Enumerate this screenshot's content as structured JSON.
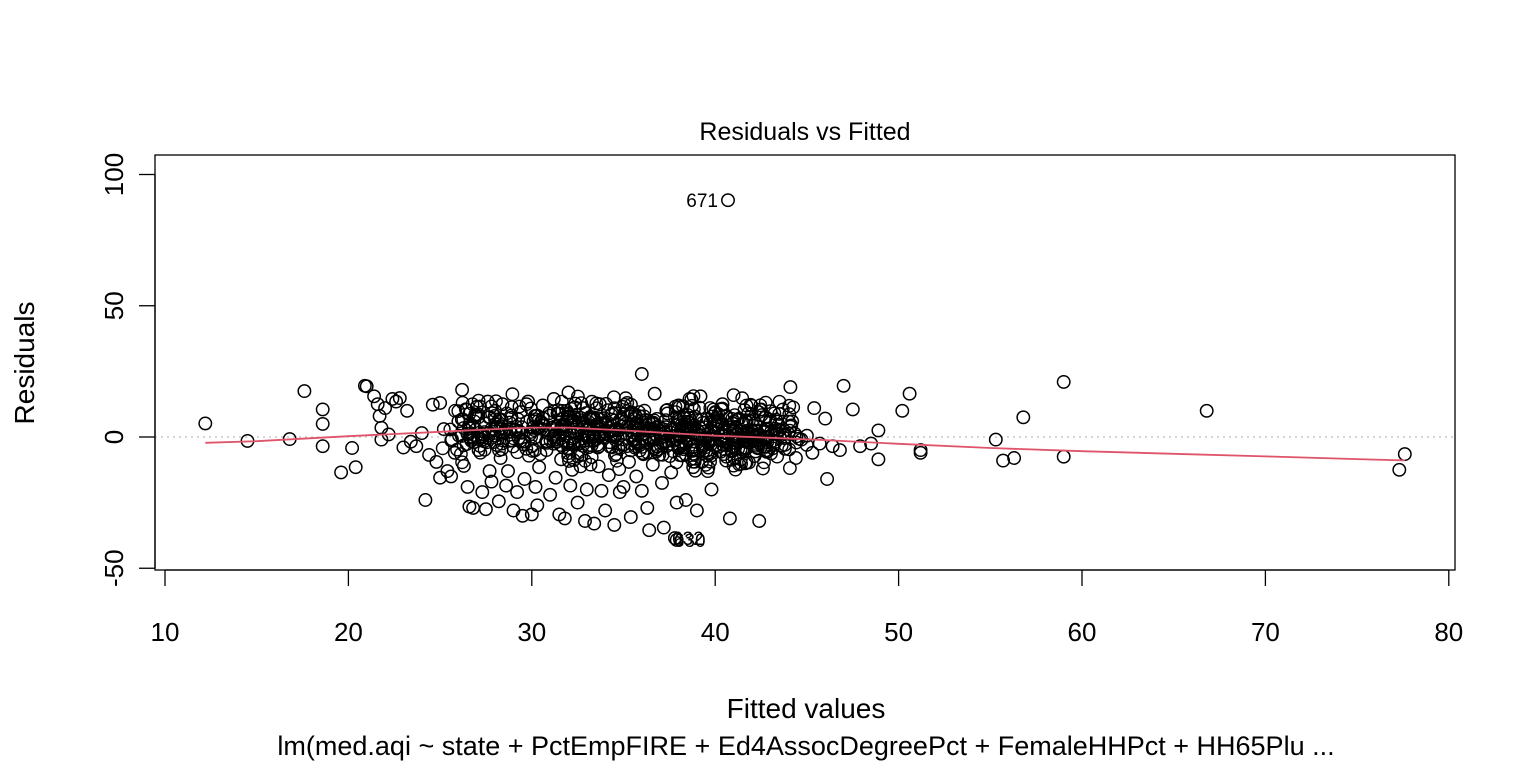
{
  "chart_data": {
    "type": "scatter",
    "title": "Residuals vs Fitted",
    "xlabel": "Fitted values",
    "ylabel": "Residuals",
    "subtitle": "lm(med.aqi ~ state + PctEmpFIRE + Ed4AssocDegreePct + FemaleHHPct + HH65Plu ...",
    "xlim": [
      10,
      80
    ],
    "ylim": [
      -50,
      100
    ],
    "x_ticks": [
      10,
      20,
      30,
      40,
      50,
      60,
      70,
      80
    ],
    "y_ticks": [
      -50,
      0,
      50,
      100
    ],
    "reference_line": {
      "y": 0,
      "style": "dotted",
      "color": "#bebebe"
    },
    "smoother": {
      "name": "lowess",
      "color": "#df536b",
      "x": [
        12.2,
        15,
        20,
        25,
        28,
        30,
        32,
        35,
        38,
        40,
        43,
        46,
        50,
        55,
        60,
        65,
        70,
        75,
        77.6
      ],
      "y": [
        -2.2,
        -1.6,
        0.3,
        2.0,
        3.0,
        3.6,
        3.6,
        2.5,
        1.3,
        0.5,
        -0.3,
        -1.2,
        -2.6,
        -4.2,
        -5.4,
        -6.4,
        -7.4,
        -8.4,
        -8.9
      ]
    },
    "outliers": [
      {
        "label": "671",
        "x": 40.7,
        "y": 90.2
      },
      {
        "label": "632",
        "x": 37.8,
        "y": -38.5
      },
      {
        "label": "630",
        "x": 37.9,
        "y": -39.2
      }
    ],
    "points": [
      [
        12.2,
        5.2
      ],
      [
        14.5,
        -1.5
      ],
      [
        16.8,
        -0.8
      ],
      [
        17.6,
        17.5
      ],
      [
        18.6,
        10.5
      ],
      [
        18.6,
        5.0
      ],
      [
        18.6,
        -3.5
      ],
      [
        19.6,
        -13.5
      ],
      [
        20.2,
        -4.2
      ],
      [
        20.4,
        -11.5
      ],
      [
        20.9,
        19.5
      ],
      [
        21.0,
        19.3
      ],
      [
        21.4,
        15.5
      ],
      [
        21.6,
        12.5
      ],
      [
        21.7,
        8.0
      ],
      [
        21.8,
        3.5
      ],
      [
        21.8,
        -1.0
      ],
      [
        22.0,
        11.0
      ],
      [
        22.2,
        1.0
      ],
      [
        22.4,
        14.5
      ],
      [
        22.6,
        13.5
      ],
      [
        22.8,
        14.8
      ],
      [
        23.0,
        -4.0
      ],
      [
        23.2,
        10.0
      ],
      [
        23.4,
        -1.8
      ],
      [
        23.7,
        -3.5
      ],
      [
        24.0,
        1.5
      ],
      [
        24.2,
        -24.0
      ],
      [
        24.4,
        -6.8
      ],
      [
        24.6,
        12.3
      ],
      [
        24.8,
        -9.5
      ],
      [
        25.0,
        13.0
      ],
      [
        25.0,
        -15.5
      ],
      [
        25.2,
        3.0
      ],
      [
        25.4,
        -13.0
      ],
      [
        25.6,
        -15.0
      ],
      [
        25.8,
        -6.0
      ],
      [
        26.0,
        6.0
      ],
      [
        26.2,
        18.0
      ],
      [
        26.3,
        -11.0
      ],
      [
        26.5,
        -19.0
      ],
      [
        26.6,
        -26.5
      ],
      [
        26.8,
        -27.0
      ],
      [
        27.0,
        11.5
      ],
      [
        27.1,
        -5.0
      ],
      [
        27.3,
        -21.0
      ],
      [
        27.5,
        -27.5
      ],
      [
        27.6,
        13.5
      ],
      [
        27.7,
        -13.0
      ],
      [
        27.8,
        -17.0
      ],
      [
        28.0,
        10.0
      ],
      [
        28.0,
        0.5
      ],
      [
        28.2,
        -24.5
      ],
      [
        28.3,
        -8.0
      ],
      [
        28.4,
        12.5
      ],
      [
        28.6,
        -18.5
      ],
      [
        28.7,
        -13.0
      ],
      [
        28.8,
        2.0
      ],
      [
        29.0,
        -28.0
      ],
      [
        29.2,
        -21.0
      ],
      [
        29.4,
        9.5
      ],
      [
        29.5,
        -30.0
      ],
      [
        29.6,
        -16.0
      ],
      [
        29.7,
        -4.5
      ],
      [
        29.8,
        13.5
      ],
      [
        30.0,
        -29.5
      ],
      [
        30.1,
        6.0
      ],
      [
        30.2,
        -19.0
      ],
      [
        30.3,
        -26.0
      ],
      [
        30.4,
        -11.5
      ],
      [
        30.6,
        12.0
      ],
      [
        30.8,
        -5.0
      ],
      [
        30.9,
        1.5
      ],
      [
        31.0,
        -22.0
      ],
      [
        31.2,
        14.5
      ],
      [
        31.3,
        -15.5
      ],
      [
        31.4,
        9.0
      ],
      [
        31.5,
        -29.5
      ],
      [
        31.6,
        -8.5
      ],
      [
        31.7,
        2.0
      ],
      [
        31.8,
        -31.0
      ],
      [
        32.0,
        17.0
      ],
      [
        32.1,
        -18.5
      ],
      [
        32.2,
        -12.5
      ],
      [
        32.4,
        5.5
      ],
      [
        32.5,
        -25.0
      ],
      [
        32.6,
        -2.5
      ],
      [
        32.8,
        11.0
      ],
      [
        32.9,
        -32.0
      ],
      [
        33.0,
        -20.0
      ],
      [
        33.2,
        -10.5
      ],
      [
        33.3,
        7.5
      ],
      [
        33.4,
        -33.0
      ],
      [
        33.6,
        -4.0
      ],
      [
        33.7,
        12.5
      ],
      [
        33.8,
        -20.5
      ],
      [
        34.0,
        -28.0
      ],
      [
        34.1,
        1.0
      ],
      [
        34.2,
        -14.5
      ],
      [
        34.4,
        9.0
      ],
      [
        34.5,
        -33.5
      ],
      [
        34.6,
        -6.5
      ],
      [
        34.8,
        -21.0
      ],
      [
        34.9,
        4.0
      ],
      [
        35.0,
        -19.0
      ],
      [
        35.2,
        13.0
      ],
      [
        35.3,
        -9.5
      ],
      [
        35.4,
        -30.5
      ],
      [
        35.6,
        3.5
      ],
      [
        35.7,
        -15.0
      ],
      [
        35.8,
        -2.5
      ],
      [
        36.0,
        24.0
      ],
      [
        36.0,
        -20.5
      ],
      [
        36.2,
        6.5
      ],
      [
        36.3,
        -27.0
      ],
      [
        36.4,
        -35.5
      ],
      [
        36.6,
        -10.5
      ],
      [
        36.7,
        16.5
      ],
      [
        36.8,
        -5.5
      ],
      [
        37.0,
        2.5
      ],
      [
        37.1,
        -17.5
      ],
      [
        37.2,
        -34.5
      ],
      [
        37.4,
        9.0
      ],
      [
        37.6,
        -13.5
      ],
      [
        37.7,
        -1.5
      ],
      [
        37.9,
        -25.0
      ],
      [
        38.0,
        12.0
      ],
      [
        38.2,
        -7.0
      ],
      [
        38.4,
        -24.0
      ],
      [
        38.6,
        5.5
      ],
      [
        38.8,
        -11.5
      ],
      [
        39.0,
        -28.0
      ],
      [
        39.2,
        15.5
      ],
      [
        39.4,
        2.0
      ],
      [
        39.6,
        -6.0
      ],
      [
        39.8,
        -20.0
      ],
      [
        40.0,
        9.5
      ],
      [
        40.2,
        -3.5
      ],
      [
        40.4,
        12.5
      ],
      [
        40.6,
        -9.0
      ],
      [
        40.8,
        -31.0
      ],
      [
        41.0,
        0.5
      ],
      [
        41.2,
        6.5
      ],
      [
        41.4,
        -8.5
      ],
      [
        41.6,
        -4.0
      ],
      [
        41.8,
        9.0
      ],
      [
        42.0,
        2.5
      ],
      [
        42.2,
        -5.5
      ],
      [
        42.4,
        -32.0
      ],
      [
        42.5,
        10.5
      ],
      [
        42.6,
        -12.0
      ],
      [
        42.8,
        0.0
      ],
      [
        43.0,
        6.5
      ],
      [
        43.2,
        -3.0
      ],
      [
        43.5,
        2.5
      ],
      [
        43.8,
        -4.5
      ],
      [
        44.1,
        19.0
      ],
      [
        44.2,
        6.0
      ],
      [
        44.4,
        -8.0
      ],
      [
        44.7,
        -1.0
      ],
      [
        45.0,
        0.5
      ],
      [
        45.3,
        -6.0
      ],
      [
        45.4,
        11.0
      ],
      [
        45.7,
        -2.5
      ],
      [
        46.0,
        7.0
      ],
      [
        46.1,
        -16.0
      ],
      [
        46.4,
        -3.5
      ],
      [
        46.8,
        -5.0
      ],
      [
        47.0,
        19.5
      ],
      [
        47.5,
        10.5
      ],
      [
        47.9,
        -3.5
      ],
      [
        48.5,
        -2.5
      ],
      [
        48.9,
        2.5
      ],
      [
        48.9,
        -8.5
      ],
      [
        50.2,
        10.0
      ],
      [
        50.6,
        16.5
      ],
      [
        51.2,
        -6.0
      ],
      [
        51.2,
        -5.0
      ],
      [
        55.3,
        -1.0
      ],
      [
        55.7,
        -9.0
      ],
      [
        56.3,
        -8.0
      ],
      [
        56.8,
        7.5
      ],
      [
        59.0,
        21.0
      ],
      [
        59.0,
        -7.5
      ],
      [
        66.8,
        10.0
      ],
      [
        77.3,
        -12.5
      ],
      [
        77.6,
        -6.5
      ]
    ]
  }
}
